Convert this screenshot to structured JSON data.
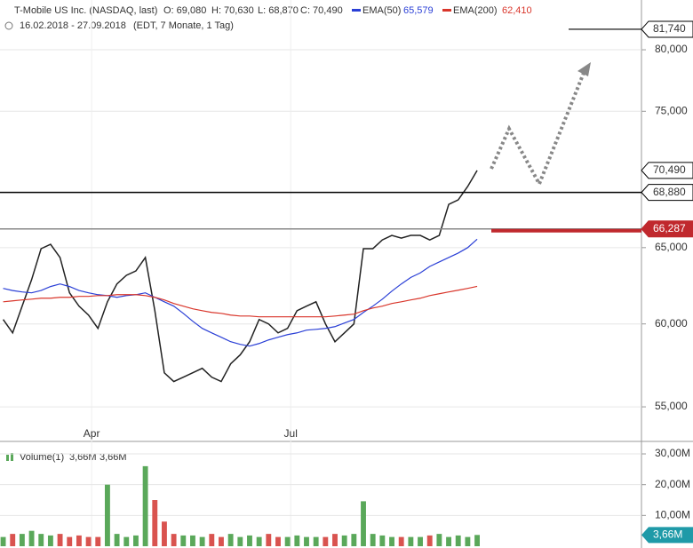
{
  "header": {
    "title": "T-Mobile US Inc. (NASDAQ, last)",
    "open": "O: 69,080",
    "high": "H: 70,630",
    "low": "L: 68,870",
    "close": "C: 70,490",
    "ema50_last": "65,579",
    "ema200_last": "62,410",
    "range": "16.02.2018 - 27.09.2018",
    "range_note": "(EDT, 7 Monate, 1 Tag)",
    "volume_name": "Volume(1)",
    "volume_value": "3,66M",
    "volume_value2": "3,66M"
  },
  "chart_data": [
    {
      "type": "line",
      "log_scale": true,
      "grid": true,
      "x": [
        0,
        3,
        6,
        9,
        12,
        15,
        18,
        21,
        24,
        27,
        30,
        33,
        36,
        39,
        42,
        45,
        48,
        51,
        54,
        57,
        60,
        63,
        66,
        69,
        72,
        75,
        78,
        81,
        84,
        87,
        90,
        93,
        96,
        99,
        102,
        105,
        108,
        111,
        114,
        117,
        120,
        123,
        126,
        129,
        132,
        135,
        138,
        141,
        144,
        147,
        150
      ],
      "xlim": [
        -1,
        202
      ],
      "xticks": [
        {
          "value": 28,
          "label": "Apr"
        },
        {
          "value": 91,
          "label": "Jul"
        }
      ],
      "ylim": [
        53.04,
        84.29
      ],
      "yticks": [
        {
          "value": 55,
          "label": "55,000"
        },
        {
          "value": 60,
          "label": "60,000"
        },
        {
          "value": 65,
          "label": "65,000"
        },
        {
          "value": 75,
          "label": "75,000"
        },
        {
          "value": 80,
          "label": "80,000"
        }
      ],
      "series": [
        {
          "color": "#222222",
          "values": [
            60.28,
            59.44,
            61.13,
            62.85,
            64.93,
            65.23,
            64.33,
            61.99,
            61.13,
            60.56,
            59.72,
            61.41,
            62.57,
            63.14,
            63.43,
            64.33,
            60.84,
            57.0,
            56.48,
            56.74,
            57.0,
            57.27,
            56.74,
            56.48,
            57.54,
            58.08,
            58.89,
            60.28,
            60.0,
            59.44,
            59.72,
            60.84,
            61.13,
            61.41,
            60.0,
            58.89,
            59.44,
            60.0,
            64.93,
            64.93,
            65.53,
            65.84,
            65.65,
            65.84,
            65.84,
            65.53,
            65.84,
            68.02,
            68.34,
            69.31,
            70.49
          ]
        },
        {
          "name": "EMA(50)",
          "color": "#2a3fd6",
          "values": [
            62.28,
            62.14,
            62.05,
            61.99,
            62.14,
            62.4,
            62.57,
            62.4,
            62.14,
            61.99,
            61.87,
            61.81,
            61.7,
            61.81,
            61.87,
            61.99,
            61.7,
            61.41,
            61.13,
            60.67,
            60.17,
            59.72,
            59.44,
            59.17,
            58.89,
            58.73,
            58.62,
            58.78,
            59.0,
            59.17,
            59.33,
            59.44,
            59.61,
            59.66,
            59.72,
            59.83,
            60.06,
            60.28,
            60.73,
            61.13,
            61.58,
            62.1,
            62.57,
            63.0,
            63.3,
            63.73,
            64.03,
            64.33,
            64.63,
            65.0,
            65.58
          ]
        },
        {
          "name": "EMA(200)",
          "color": "#d9362b",
          "values": [
            61.41,
            61.47,
            61.53,
            61.58,
            61.64,
            61.64,
            61.7,
            61.7,
            61.76,
            61.76,
            61.81,
            61.81,
            61.87,
            61.87,
            61.87,
            61.81,
            61.7,
            61.53,
            61.3,
            61.13,
            60.96,
            60.84,
            60.73,
            60.67,
            60.56,
            60.5,
            60.5,
            60.45,
            60.45,
            60.45,
            60.45,
            60.45,
            60.45,
            60.45,
            60.45,
            60.5,
            60.56,
            60.62,
            60.84,
            61.01,
            61.13,
            61.3,
            61.41,
            61.53,
            61.64,
            61.81,
            61.93,
            62.05,
            62.16,
            62.28,
            62.41
          ]
        }
      ],
      "levels": [
        {
          "value": 81.74,
          "label": "81,740",
          "color": "#000000",
          "line": "right"
        },
        {
          "value": 70.49,
          "label": "70,490",
          "color": "#000000",
          "line": "none"
        },
        {
          "value": 68.88,
          "label": "68,880",
          "color": "#000000",
          "line": "full"
        },
        {
          "value": 66.287,
          "label": "66,287",
          "color": "#c0282d",
          "line": "full"
        }
      ]
    },
    {
      "type": "bar",
      "grid": true,
      "values": [
        3,
        4,
        4,
        5,
        4,
        3.5,
        4,
        3,
        3.5,
        3,
        3,
        20,
        4,
        3,
        3.5,
        26,
        15,
        8,
        4,
        3.5,
        3.5,
        3,
        4,
        3,
        4,
        3,
        3.5,
        3,
        4,
        3,
        3,
        3.5,
        3,
        3,
        3,
        4,
        3.5,
        4,
        14.6,
        4,
        3.5,
        3,
        3,
        3,
        3,
        3.5,
        4,
        3,
        3.5,
        3,
        3.66
      ],
      "ylim": [
        0,
        31.74
      ],
      "yticks": [
        {
          "value": 10,
          "label": "10,00M"
        },
        {
          "value": 20,
          "label": "20,00M"
        },
        {
          "value": 30,
          "label": "30,00M"
        }
      ],
      "up_color": "#5aa85a",
      "down_color": "#d9534f",
      "last_color": "#1f9aa8",
      "last_label": "3,66M"
    }
  ]
}
